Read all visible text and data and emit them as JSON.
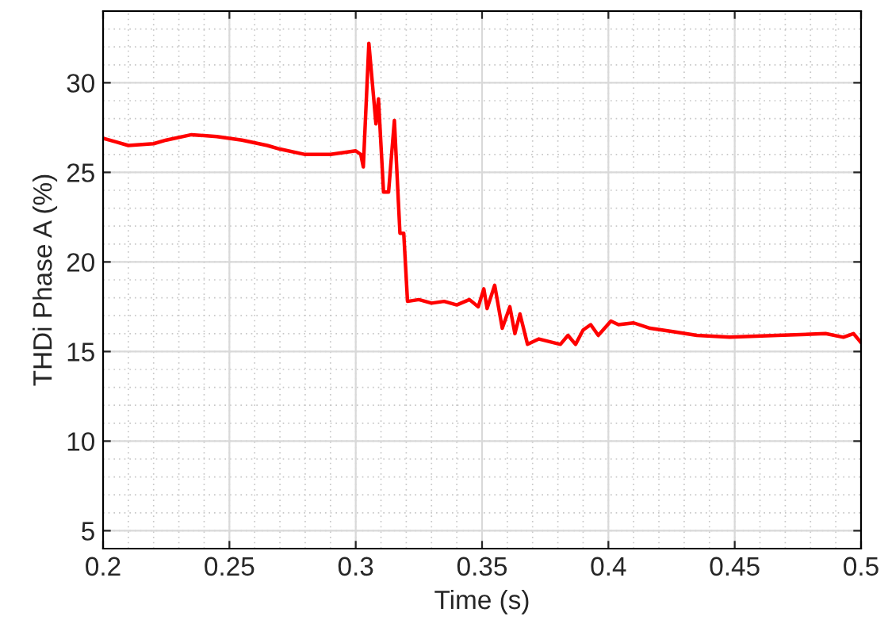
{
  "chart_data": {
    "type": "line",
    "xlabel": "Time (s)",
    "ylabel": "THDi Phase A (%)",
    "x": [
      0.2,
      0.205,
      0.21,
      0.22,
      0.225,
      0.235,
      0.245,
      0.25,
      0.255,
      0.265,
      0.27,
      0.28,
      0.29,
      0.295,
      0.3,
      0.302,
      0.303,
      0.3052,
      0.308,
      0.309,
      0.311,
      0.313,
      0.3153,
      0.3175,
      0.319,
      0.3205,
      0.325,
      0.33,
      0.335,
      0.34,
      0.345,
      0.3485,
      0.3507,
      0.352,
      0.355,
      0.358,
      0.361,
      0.363,
      0.365,
      0.368,
      0.3725,
      0.381,
      0.384,
      0.387,
      0.39,
      0.393,
      0.396,
      0.401,
      0.404,
      0.41,
      0.4165,
      0.426,
      0.435,
      0.448,
      0.467,
      0.486,
      0.493,
      0.497,
      0.5
    ],
    "series": [
      {
        "color": "#ff0000",
        "values": [
          26.9,
          26.7,
          26.5,
          26.6,
          26.8,
          27.1,
          27.0,
          26.9,
          26.8,
          26.5,
          26.3,
          26.0,
          26.0,
          26.1,
          26.2,
          26.0,
          25.3,
          32.2,
          27.7,
          29.1,
          23.9,
          23.9,
          27.9,
          21.6,
          21.6,
          17.8,
          17.9,
          17.7,
          17.8,
          17.6,
          17.9,
          17.5,
          18.5,
          17.4,
          18.7,
          16.3,
          17.5,
          16.0,
          17.1,
          15.4,
          15.7,
          15.4,
          15.9,
          15.4,
          16.2,
          16.5,
          15.9,
          16.7,
          16.5,
          16.6,
          16.3,
          16.1,
          15.9,
          15.8,
          15.9,
          16.0,
          15.8,
          16.0,
          15.5
        ]
      }
    ],
    "xlim": [
      0.2,
      0.5
    ],
    "xticks": [
      0.2,
      0.25,
      0.3,
      0.35,
      0.4,
      0.45,
      0.5
    ],
    "ylim": [
      4,
      34
    ],
    "yticks": [
      5,
      10,
      15,
      20,
      25,
      30
    ],
    "grid": true,
    "marker": "none",
    "line_style": "solid"
  }
}
